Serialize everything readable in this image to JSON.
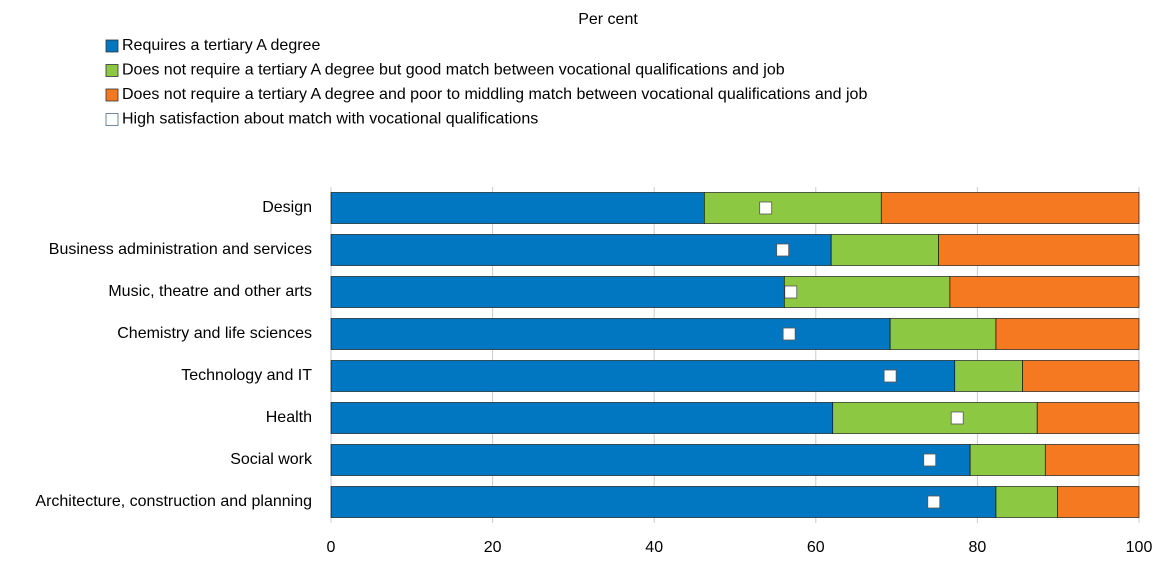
{
  "chart_data": {
    "type": "stacked_bar_h",
    "title": "Per cent",
    "categories": [
      "Design",
      "Business administration and services",
      "Music, theatre and other arts",
      "Chemistry and life sciences",
      "Technology and IT",
      "Health",
      "Social work",
      "Architecture, construction and planning"
    ],
    "series": [
      {
        "name": "Requires a tertiary A degree",
        "color": "#0077c0",
        "values": [
          46.2,
          61.9,
          56.1,
          69.2,
          77.2,
          62.1,
          79.1,
          82.3
        ]
      },
      {
        "name": "Does not require a tertiary A degree but good match between vocational qualifications and job",
        "color": "#8cc841",
        "values": [
          21.9,
          13.3,
          20.5,
          13.1,
          8.4,
          25.3,
          9.3,
          7.6
        ]
      },
      {
        "name": "Does not require a tertiary A degree and poor to middling match between vocational qualifications and job",
        "color": "#f47920",
        "values": [
          31.9,
          24.8,
          23.4,
          17.7,
          14.4,
          12.6,
          11.6,
          10.1
        ]
      }
    ],
    "markers": {
      "name": "High satisfaction about match with vocational qualifications",
      "color": "#ffffff",
      "values": [
        53.8,
        55.9,
        56.9,
        56.7,
        69.2,
        77.5,
        74.1,
        74.6
      ]
    },
    "xlim": [
      0,
      100
    ],
    "xticks": [
      0,
      20,
      40,
      60,
      80,
      100
    ]
  }
}
